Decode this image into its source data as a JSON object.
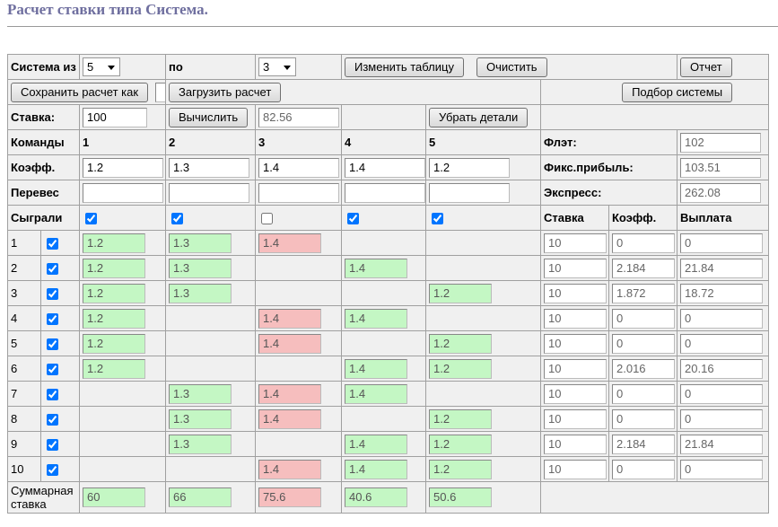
{
  "header": {
    "title": "Расчет ставки типа Система."
  },
  "controls": {
    "system_label": "Система из",
    "system_from": "5",
    "to_label": "по",
    "system_to": "3",
    "change_table": "Изменить таблицу",
    "clear": "Очистить",
    "report": "Отчет",
    "save_as": "Сохранить расчет как",
    "load": "Загрузить расчет",
    "select_system": "Подбор системы",
    "stake_label": "Ставка:",
    "stake": "100",
    "calculate": "Вычислить",
    "calculated": "82.56",
    "hide_details": "Убрать детали"
  },
  "teams": {
    "label": "Команды",
    "names": [
      "1",
      "2",
      "3",
      "4",
      "5"
    ],
    "coef_label": "Коэфф.",
    "coefs": [
      "1.2",
      "1.3",
      "1.4",
      "1.4",
      "1.2"
    ],
    "edge_label": "Перевес",
    "played_label": "Сыграли",
    "played": [
      true,
      true,
      false,
      true,
      true
    ]
  },
  "summary": {
    "flat_label": "Флэт:",
    "flat": "102",
    "fixed_label": "Фикс.прибыль:",
    "fixed": "103.51",
    "express_label": "Экспресс:",
    "express": "262.08"
  },
  "combos": {
    "headers": [
      "Ставка",
      "Коэфф.",
      "Выплата"
    ],
    "rows": [
      {
        "number": "1",
        "checked": true,
        "values": [
          "1.2",
          "1.3",
          "1.4",
          null,
          null
        ],
        "stake": "10",
        "coef": "0",
        "payout": "0"
      },
      {
        "number": "2",
        "checked": true,
        "values": [
          "1.2",
          "1.3",
          null,
          "1.4",
          null
        ],
        "stake": "10",
        "coef": "2.184",
        "payout": "21.84"
      },
      {
        "number": "3",
        "checked": true,
        "values": [
          "1.2",
          "1.3",
          null,
          null,
          "1.2"
        ],
        "stake": "10",
        "coef": "1.872",
        "payout": "18.72"
      },
      {
        "number": "4",
        "checked": true,
        "values": [
          "1.2",
          null,
          "1.4",
          "1.4",
          null
        ],
        "stake": "10",
        "coef": "0",
        "payout": "0"
      },
      {
        "number": "5",
        "checked": true,
        "values": [
          "1.2",
          null,
          "1.4",
          null,
          "1.2"
        ],
        "stake": "10",
        "coef": "0",
        "payout": "0"
      },
      {
        "number": "6",
        "checked": true,
        "values": [
          "1.2",
          null,
          null,
          "1.4",
          "1.2"
        ],
        "stake": "10",
        "coef": "2.016",
        "payout": "20.16"
      },
      {
        "number": "7",
        "checked": true,
        "values": [
          null,
          "1.3",
          "1.4",
          "1.4",
          null
        ],
        "stake": "10",
        "coef": "0",
        "payout": "0"
      },
      {
        "number": "8",
        "checked": true,
        "values": [
          null,
          "1.3",
          "1.4",
          null,
          "1.2"
        ],
        "stake": "10",
        "coef": "0",
        "payout": "0"
      },
      {
        "number": "9",
        "checked": true,
        "values": [
          null,
          "1.3",
          null,
          "1.4",
          "1.2"
        ],
        "stake": "10",
        "coef": "2.184",
        "payout": "21.84"
      },
      {
        "number": "10",
        "checked": true,
        "values": [
          null,
          null,
          "1.4",
          "1.4",
          "1.2"
        ],
        "stake": "10",
        "coef": "0",
        "payout": "0"
      }
    ]
  },
  "totals": {
    "label": "Суммарная ставка",
    "values": [
      "60",
      "66",
      "75.6",
      "40.6",
      "50.6"
    ]
  }
}
